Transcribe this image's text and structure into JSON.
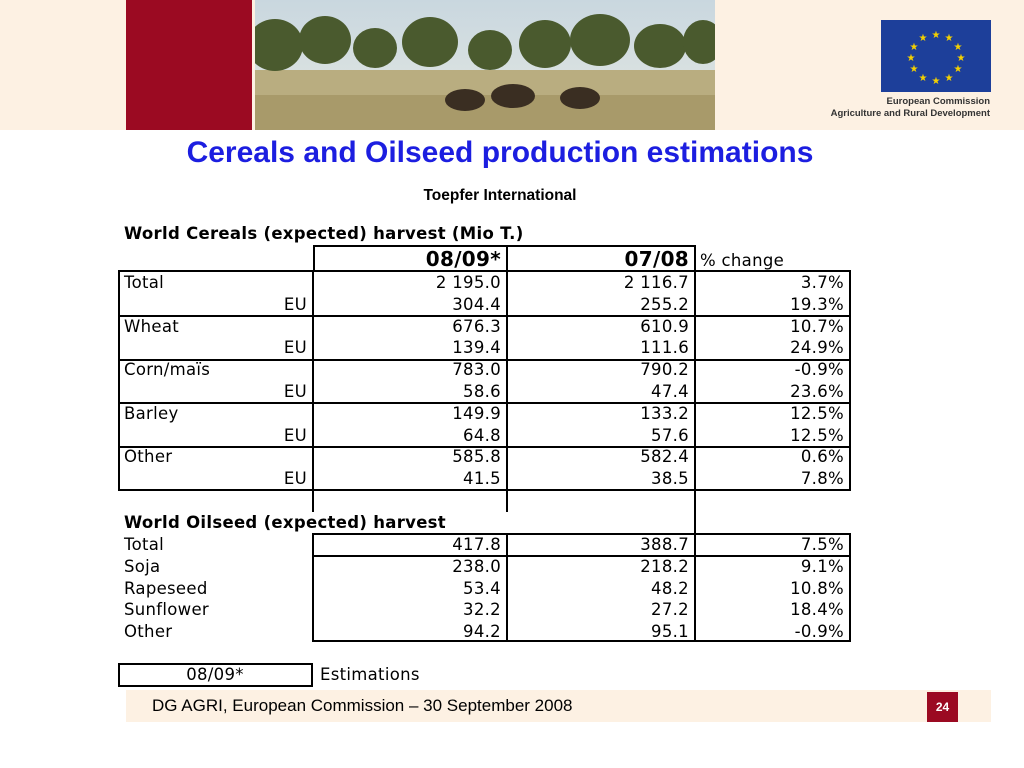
{
  "header": {
    "eu_org_line1": "European Commission",
    "eu_org_line2": "Agriculture and Rural Development"
  },
  "title": "Cereals and Oilseed production estimations",
  "subtitle": "Toepfer International",
  "cereals": {
    "heading": "World Cereals (expected) harvest (Mio T.)",
    "col1": "08/09*",
    "col2": "07/08",
    "col3": "% change",
    "rows": [
      {
        "label": "Total",
        "v1": "2 195.0",
        "v2": "2 116.7",
        "pct": "3.7%"
      },
      {
        "label": "EU",
        "v1": "304.4",
        "v2": "255.2",
        "pct": "19.3%"
      },
      {
        "label": "Wheat",
        "v1": "676.3",
        "v2": "610.9",
        "pct": "10.7%"
      },
      {
        "label": "EU",
        "v1": "139.4",
        "v2": "111.6",
        "pct": "24.9%"
      },
      {
        "label": "Corn/maïs",
        "v1": "783.0",
        "v2": "790.2",
        "pct": "-0.9%"
      },
      {
        "label": "EU",
        "v1": "58.6",
        "v2": "47.4",
        "pct": "23.6%"
      },
      {
        "label": "Barley",
        "v1": "149.9",
        "v2": "133.2",
        "pct": "12.5%"
      },
      {
        "label": "EU",
        "v1": "64.8",
        "v2": "57.6",
        "pct": "12.5%"
      },
      {
        "label": "Other",
        "v1": "585.8",
        "v2": "582.4",
        "pct": "0.6%"
      },
      {
        "label": "EU",
        "v1": "41.5",
        "v2": "38.5",
        "pct": "7.8%"
      }
    ]
  },
  "oilseed": {
    "heading": "World Oilseed (expected) harvest",
    "rows": [
      {
        "label": "Total",
        "v1": "417.8",
        "v2": "388.7",
        "pct": "7.5%"
      },
      {
        "label": "Soja",
        "v1": "238.0",
        "v2": "218.2",
        "pct": "9.1%"
      },
      {
        "label": "Rapeseed",
        "v1": "53.4",
        "v2": "48.2",
        "pct": "10.8%"
      },
      {
        "label": "Sunflower",
        "v1": "32.2",
        "v2": "27.2",
        "pct": "18.4%"
      },
      {
        "label": "Other",
        "v1": "94.2",
        "v2": "95.1",
        "pct": "-0.9%"
      }
    ]
  },
  "legend": {
    "key": "08/09*",
    "text": "Estimations"
  },
  "footer": {
    "text": "DG AGRI, European Commission – 30 September 2008",
    "page": "24"
  }
}
